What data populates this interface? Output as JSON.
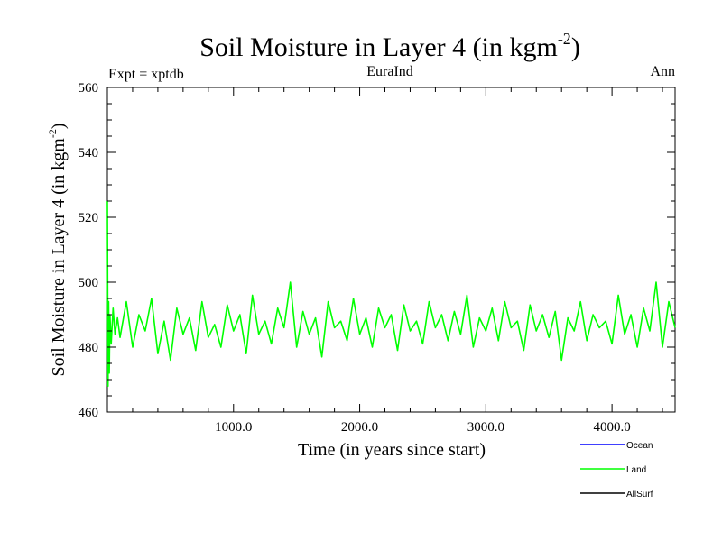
{
  "chart_data": {
    "type": "line",
    "title": "Soil Moisture in Layer 4 (in kgm",
    "title_sup": "-2",
    "title_close": ")",
    "subtitle_left": "Expt = xptdb",
    "subtitle_center": "EuraInd",
    "subtitle_right": "Ann",
    "xlabel": "Time (in years since start)",
    "ylabel": "Soil Moisture in Layer 4 (in kgm",
    "ylabel_sup": "-2",
    "ylabel_close": ")",
    "xlim": [
      0,
      4500
    ],
    "ylim": [
      460,
      560
    ],
    "x_ticks": [
      {
        "value": 1000,
        "label": "1000.0"
      },
      {
        "value": 2000,
        "label": "2000.0"
      },
      {
        "value": 3000,
        "label": "3000.0"
      },
      {
        "value": 4000,
        "label": "4000.0"
      }
    ],
    "y_ticks": [
      {
        "value": 460,
        "label": "460"
      },
      {
        "value": 480,
        "label": "480"
      },
      {
        "value": 500,
        "label": "500"
      },
      {
        "value": 520,
        "label": "520"
      },
      {
        "value": 540,
        "label": "540"
      },
      {
        "value": 560,
        "label": "560"
      }
    ],
    "series": [
      {
        "name": "Ocean",
        "color": "#0000ff",
        "values": []
      },
      {
        "name": "Land",
        "color": "#00ff00",
        "description_stats": {
          "start_value": 525,
          "initial_min": 467,
          "mean": 486.5,
          "typical_min": 476,
          "typical_max": 497
        },
        "x": [
          0,
          5,
          10,
          15,
          20,
          30,
          45,
          60,
          80,
          100,
          150,
          200,
          250,
          300,
          350,
          400,
          450,
          500,
          550,
          600,
          650,
          700,
          750,
          800,
          850,
          900,
          950,
          1000,
          1050,
          1100,
          1150,
          1200,
          1250,
          1300,
          1350,
          1400,
          1450,
          1500,
          1550,
          1600,
          1650,
          1700,
          1750,
          1800,
          1850,
          1900,
          1950,
          2000,
          2050,
          2100,
          2150,
          2200,
          2250,
          2300,
          2350,
          2400,
          2450,
          2500,
          2550,
          2600,
          2650,
          2700,
          2750,
          2800,
          2850,
          2900,
          2950,
          3000,
          3050,
          3100,
          3150,
          3200,
          3250,
          3300,
          3350,
          3400,
          3450,
          3500,
          3550,
          3600,
          3650,
          3700,
          3750,
          3800,
          3850,
          3900,
          3950,
          4000,
          4050,
          4100,
          4150,
          4200,
          4250,
          4300,
          4350,
          4400,
          4450,
          4500
        ],
        "values": [
          525,
          468,
          494,
          472,
          490,
          481,
          492,
          484,
          489,
          483,
          494,
          480,
          490,
          485,
          495,
          478,
          488,
          476,
          492,
          484,
          489,
          479,
          494,
          483,
          487,
          480,
          493,
          485,
          490,
          478,
          496,
          484,
          488,
          481,
          492,
          486,
          500,
          480,
          491,
          484,
          489,
          477,
          494,
          486,
          488,
          482,
          495,
          484,
          489,
          480,
          492,
          486,
          490,
          479,
          493,
          485,
          488,
          481,
          494,
          486,
          490,
          482,
          491,
          484,
          496,
          480,
          489,
          485,
          492,
          482,
          494,
          486,
          488,
          479,
          493,
          485,
          490,
          483,
          491,
          476,
          489,
          485,
          494,
          482,
          490,
          486,
          488,
          481,
          496,
          484,
          490,
          480,
          492,
          485,
          500,
          480,
          494,
          486
        ]
      },
      {
        "name": "AllSurf",
        "color": "#000000",
        "values": []
      }
    ],
    "legend_position": "bottom-right",
    "grid": false
  }
}
